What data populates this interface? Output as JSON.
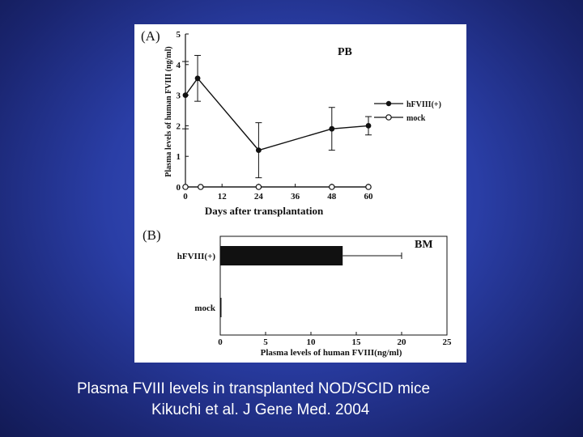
{
  "caption": {
    "line1": "Plasma FVIII levels in transplanted NOD/SCID mice",
    "line2": "Kikuchi et al. J Gene Med. 2004"
  },
  "chart_data": [
    {
      "type": "line",
      "panel_label": "(A)",
      "annotation": "PB",
      "xlabel": "Days after transplantation",
      "ylabel": "Plasma levels of human FVIII (ng/ml)",
      "xlim": [
        0,
        60
      ],
      "ylim": [
        0,
        5
      ],
      "xticks": [
        "0",
        "12",
        "24",
        "36",
        "48",
        "60"
      ],
      "yticks": [
        "0",
        "1",
        "2",
        "3",
        "4",
        "5"
      ],
      "legend_position": "right",
      "series": [
        {
          "name": "hFVIII(+)",
          "marker": "filled-circle",
          "x": [
            0,
            4,
            24,
            48,
            60
          ],
          "y": [
            3.0,
            3.55,
            1.2,
            1.9,
            2.0
          ],
          "err": [
            1.1,
            0.75,
            0.9,
            0.7,
            0.3
          ]
        },
        {
          "name": "mock",
          "marker": "open-circle",
          "x": [
            0,
            5,
            24,
            48,
            60
          ],
          "y": [
            0,
            0,
            0,
            0,
            0
          ]
        }
      ]
    },
    {
      "type": "bar",
      "orientation": "horizontal",
      "panel_label": "(B)",
      "annotation": "BM",
      "xlabel": "Plasma levels of human FVIII(ng/ml)",
      "xlim": [
        0,
        25
      ],
      "xticks": [
        "0",
        "5",
        "10",
        "15",
        "20",
        "25"
      ],
      "categories": [
        "hFVIII(+)",
        "mock"
      ],
      "values": [
        13.5,
        0.1
      ],
      "err": [
        6.5,
        0
      ],
      "bar_color": "#111111"
    }
  ],
  "colors": {
    "background": "#2a3ea6",
    "figure_bg": "#ffffff",
    "ink": "#111111",
    "caption": "#ffffff"
  }
}
